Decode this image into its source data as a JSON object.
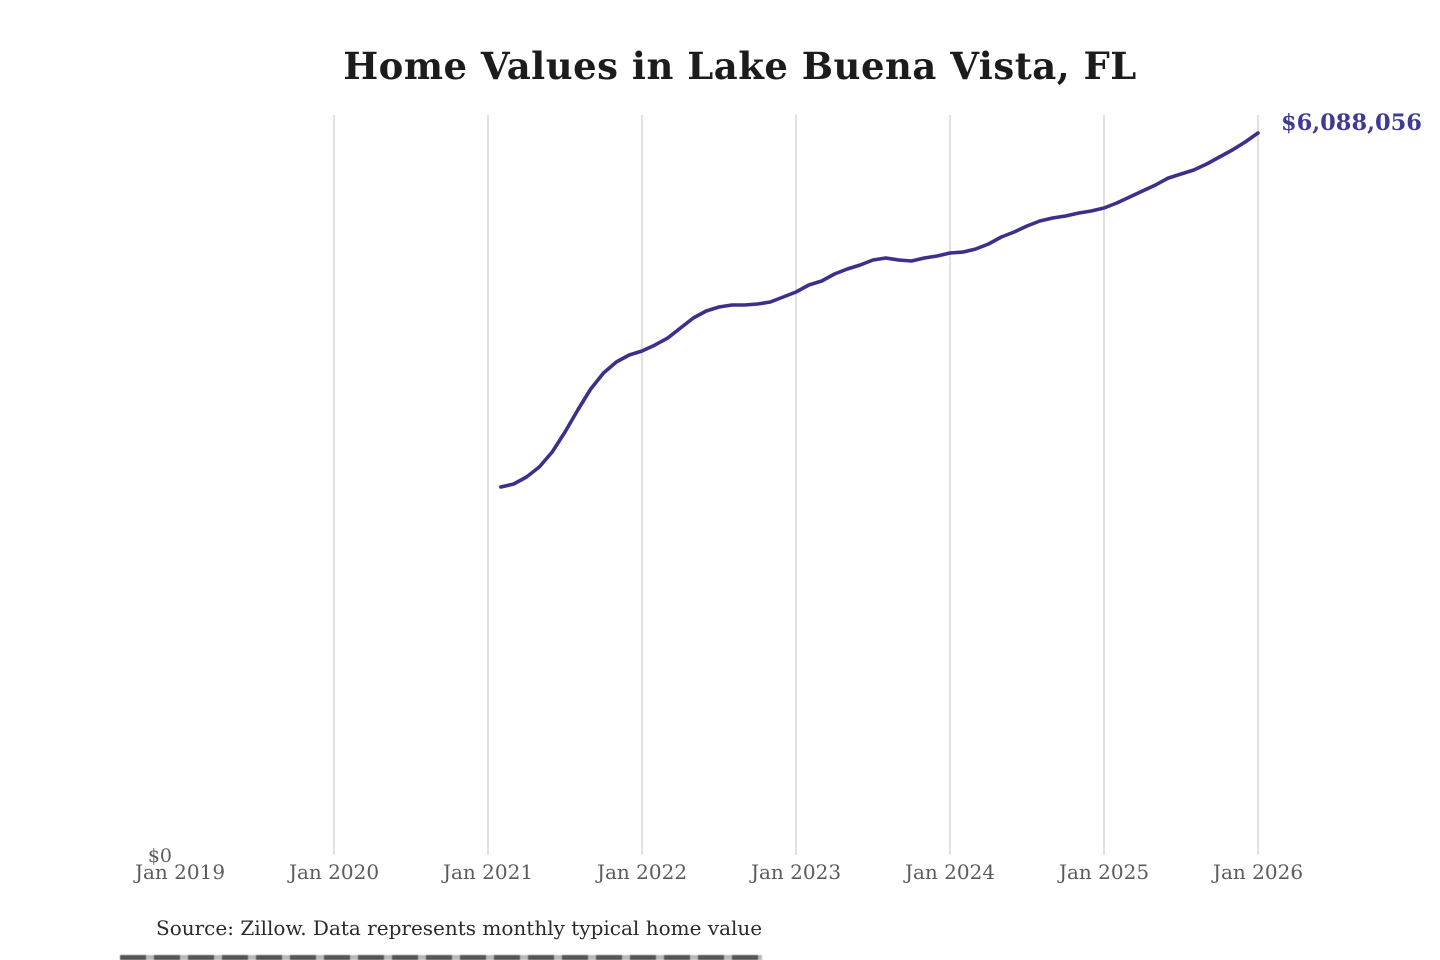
{
  "chart_data": {
    "type": "line",
    "title": "Home Values in Lake Buena Vista, FL",
    "end_label": "$6,088,056",
    "end_value": 6088056,
    "source_note": "Source: Zillow. Data represents monthly typical home value",
    "x_tick_labels": [
      "Jan 2019",
      "Jan 2020",
      "Jan 2021",
      "Jan 2022",
      "Jan 2023",
      "Jan 2024",
      "Jan 2025",
      "Jan 2026"
    ],
    "gridline_labels": [
      "Jan 2020",
      "Jan 2021",
      "Jan 2022",
      "Jan 2023",
      "Jan 2024",
      "Jan 2025",
      "Jan 2026"
    ],
    "y_tick_labels": [
      "$0"
    ],
    "ylim": [
      0,
      6240000
    ],
    "grid": "vertical-only",
    "legend": "none",
    "series": [
      {
        "name": "Monthly typical home value",
        "start": "Feb 2021",
        "end": "Jan 2026",
        "interval": "monthly",
        "values": [
          3103000,
          3128000,
          3187000,
          3272000,
          3398000,
          3567000,
          3752000,
          3929000,
          4064000,
          4157000,
          4216000,
          4250000,
          4300000,
          4359000,
          4444000,
          4528000,
          4587000,
          4621000,
          4638000,
          4638000,
          4646000,
          4663000,
          4705000,
          4747000,
          4806000,
          4840000,
          4899000,
          4941000,
          4975000,
          5017000,
          5034000,
          5017000,
          5009000,
          5034000,
          5051000,
          5076000,
          5084000,
          5110000,
          5152000,
          5211000,
          5253000,
          5304000,
          5346000,
          5371000,
          5388000,
          5413000,
          5430000,
          5456000,
          5498000,
          5548000,
          5599000,
          5649000,
          5708000,
          5742000,
          5776000,
          5827000,
          5886000,
          5945000,
          6012000,
          6088056
        ]
      }
    ],
    "colors": {
      "line": "#39318a",
      "end_label": "#3e3b96",
      "gridline": "#cdcdcd",
      "axis_text": "#5b5b5b",
      "title": "#1c1c1c",
      "source_text": "#2b2b2b"
    }
  }
}
